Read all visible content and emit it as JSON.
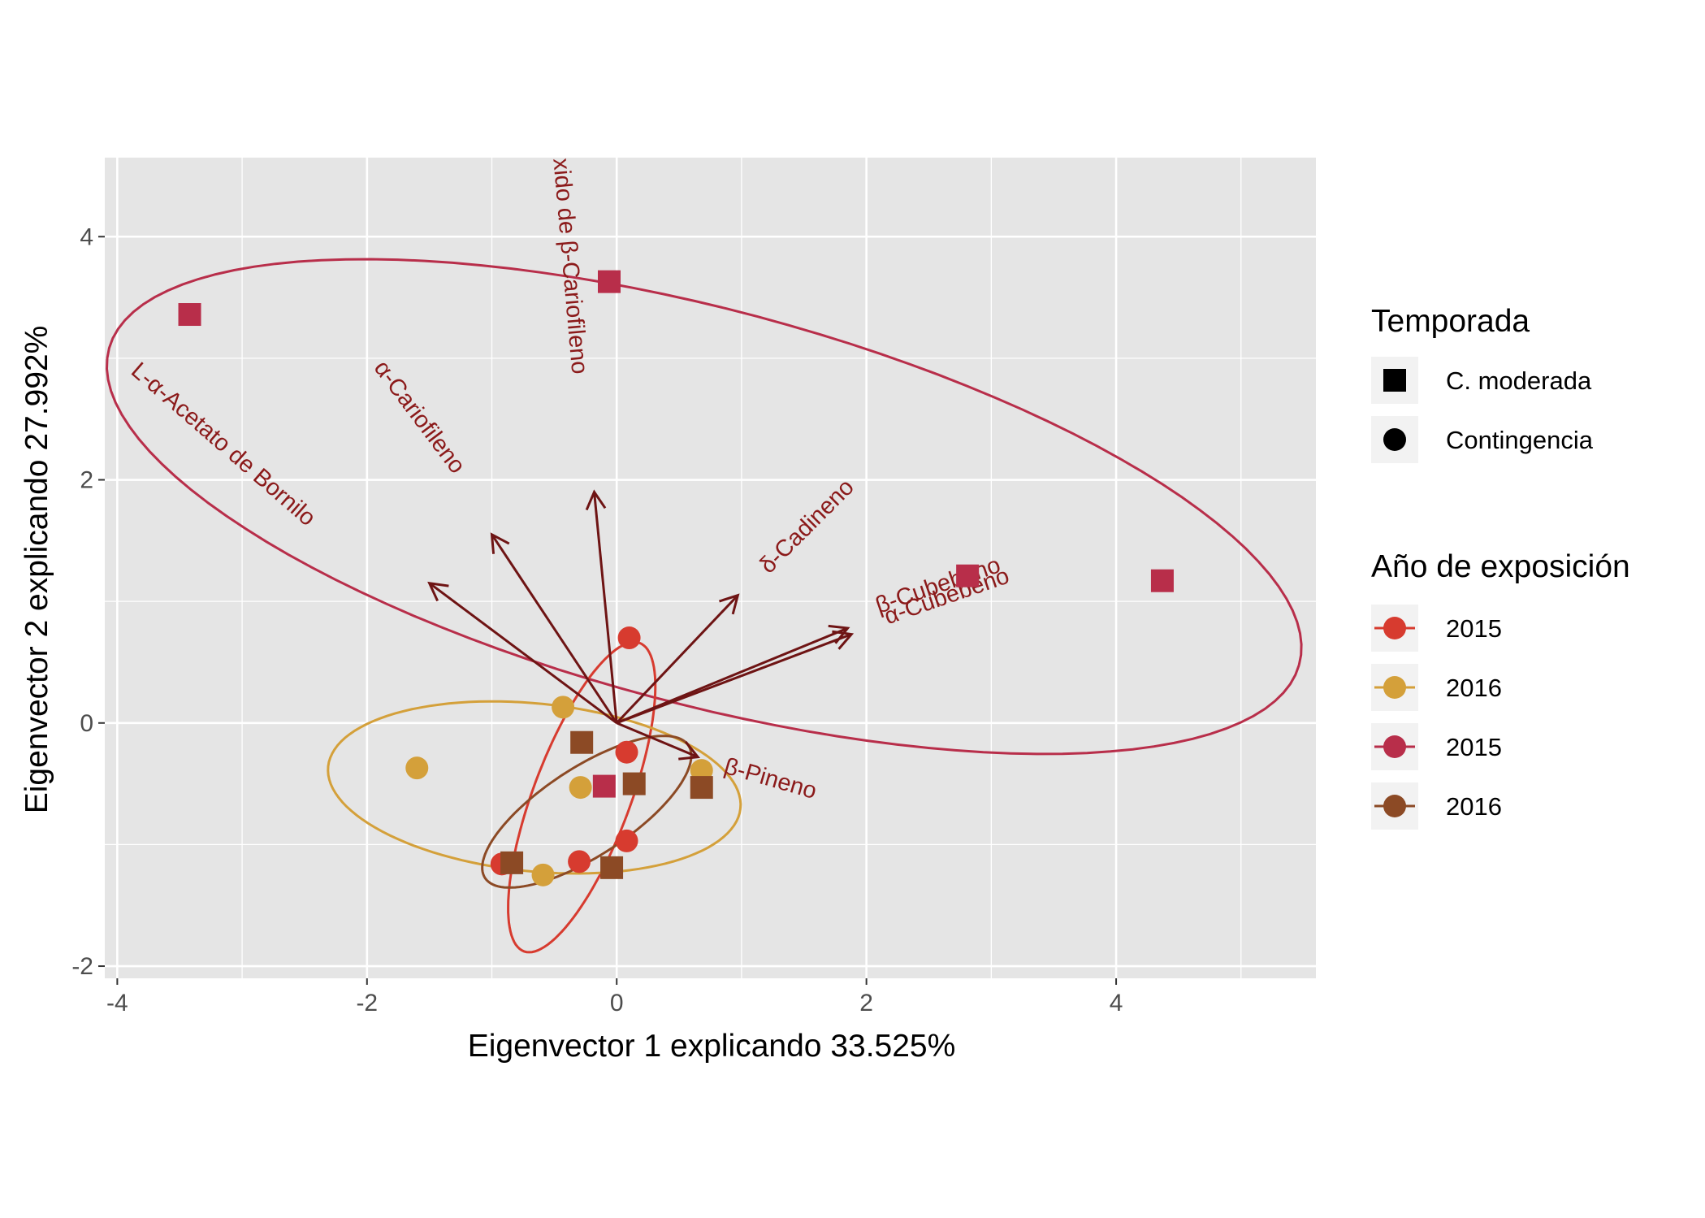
{
  "chart_data": {
    "type": "scatter",
    "subtype": "pca-biplot",
    "title": "",
    "xlabel": "Eigenvector 1 explicando 33.525%",
    "ylabel": "Eigenvector 2 explicando 27.992%",
    "xlim": [
      -4.1,
      5.6
    ],
    "ylim": [
      -2.1,
      4.65
    ],
    "x_ticks": [
      -4,
      -2,
      0,
      2,
      4
    ],
    "y_ticks": [
      -2,
      0,
      2,
      4
    ],
    "grid": true,
    "panel_background": "#e5e5e5",
    "legend_position": "right",
    "shape_legend": {
      "title": "Temporada",
      "items": [
        {
          "label": "C. moderada",
          "shape": "square"
        },
        {
          "label": "Contingencia",
          "shape": "circle"
        }
      ]
    },
    "color_legend": {
      "title": "Año de exposición",
      "items": [
        {
          "label": "2015",
          "color": "#d73b2f"
        },
        {
          "label": "2016",
          "color": "#d4a03a"
        },
        {
          "label": "2015",
          "color": "#b82e4a"
        },
        {
          "label": "2016",
          "color": "#8c4a25"
        }
      ]
    },
    "points": [
      {
        "x": 0.1,
        "y": 0.7,
        "shape": "circle",
        "color": "#d73b2f"
      },
      {
        "x": 0.08,
        "y": -0.24,
        "shape": "circle",
        "color": "#d73b2f"
      },
      {
        "x": 0.08,
        "y": -0.97,
        "shape": "circle",
        "color": "#d73b2f"
      },
      {
        "x": -0.3,
        "y": -1.14,
        "shape": "circle",
        "color": "#d73b2f"
      },
      {
        "x": -0.92,
        "y": -1.16,
        "shape": "circle",
        "color": "#d73b2f"
      },
      {
        "x": -0.43,
        "y": 0.13,
        "shape": "circle",
        "color": "#d4a03a"
      },
      {
        "x": -1.6,
        "y": -0.37,
        "shape": "circle",
        "color": "#d4a03a"
      },
      {
        "x": -0.29,
        "y": -0.53,
        "shape": "circle",
        "color": "#d4a03a"
      },
      {
        "x": 0.68,
        "y": -0.39,
        "shape": "circle",
        "color": "#d4a03a"
      },
      {
        "x": -0.59,
        "y": -1.25,
        "shape": "circle",
        "color": "#d4a03a"
      },
      {
        "x": -3.42,
        "y": 3.36,
        "shape": "square",
        "color": "#b82e4a"
      },
      {
        "x": -0.06,
        "y": 3.63,
        "shape": "square",
        "color": "#b82e4a"
      },
      {
        "x": 2.81,
        "y": 1.21,
        "shape": "square",
        "color": "#b82e4a"
      },
      {
        "x": 4.37,
        "y": 1.17,
        "shape": "square",
        "color": "#b82e4a"
      },
      {
        "x": -0.1,
        "y": -0.52,
        "shape": "square",
        "color": "#b82e4a"
      },
      {
        "x": -0.28,
        "y": -0.16,
        "shape": "square",
        "color": "#8c4a25"
      },
      {
        "x": 0.14,
        "y": -0.5,
        "shape": "square",
        "color": "#8c4a25"
      },
      {
        "x": 0.68,
        "y": -0.53,
        "shape": "square",
        "color": "#8c4a25"
      },
      {
        "x": -0.84,
        "y": -1.15,
        "shape": "square",
        "color": "#8c4a25"
      },
      {
        "x": -0.04,
        "y": -1.19,
        "shape": "square",
        "color": "#8c4a25"
      }
    ],
    "ellipses": [
      {
        "color": "#b82e4a",
        "cx": 0.7,
        "cy": 1.78,
        "rx": 4.94,
        "ry": 1.62,
        "angle_deg": -15.3
      },
      {
        "color": "#d73b2f",
        "cx": -0.28,
        "cy": -0.61,
        "rx": 1.35,
        "ry": 0.39,
        "angle_deg": 70
      },
      {
        "color": "#d4a03a",
        "cx": -0.66,
        "cy": -0.53,
        "rx": 1.66,
        "ry": 0.69,
        "angle_deg": -6
      },
      {
        "color": "#8c4a25",
        "cx": -0.24,
        "cy": -0.73,
        "rx": 0.98,
        "ry": 0.36,
        "angle_deg": 34
      }
    ],
    "vector_color": "#6e1414",
    "vectors": [
      {
        "label": "L-α-Acetato de Bornilo",
        "x": -1.5,
        "y": 1.15
      },
      {
        "label": "α-Cariofileno",
        "x": -1.0,
        "y": 1.55
      },
      {
        "label": "Óxido de β-Cariofileno",
        "x": -0.18,
        "y": 1.9
      },
      {
        "label": "δ-Cadineno",
        "x": 0.97,
        "y": 1.05
      },
      {
        "label": "β-Cubebeno",
        "x": 1.85,
        "y": 0.78
      },
      {
        "label": "α-Cubebeno",
        "x": 1.88,
        "y": 0.73
      },
      {
        "label": "β-Pineno",
        "x": 0.65,
        "y": -0.28
      }
    ]
  },
  "vector_label_positions": [
    {
      "label": "L-α-Acetato de Bornilo",
      "tx": -3.9,
      "ty": 2.88,
      "rot": 41
    },
    {
      "label": "α-Cariofileno",
      "tx": -1.95,
      "ty": 2.92,
      "rot": 53
    },
    {
      "label": "Óxido de β-Cariofileno",
      "tx": -0.52,
      "ty": 4.79,
      "rot": 85
    },
    {
      "label": "δ-Cadineno",
      "tx": 1.22,
      "ty": 1.22,
      "rot": -45
    },
    {
      "label": "β-Cubebeno",
      "tx": 2.1,
      "ty": 0.9,
      "rot": -19
    },
    {
      "label": "α-Cubebeno",
      "tx": 2.17,
      "ty": 0.81,
      "rot": -19
    },
    {
      "label": "β-Pineno",
      "tx": 0.85,
      "ty": -0.41,
      "rot": 16
    }
  ]
}
